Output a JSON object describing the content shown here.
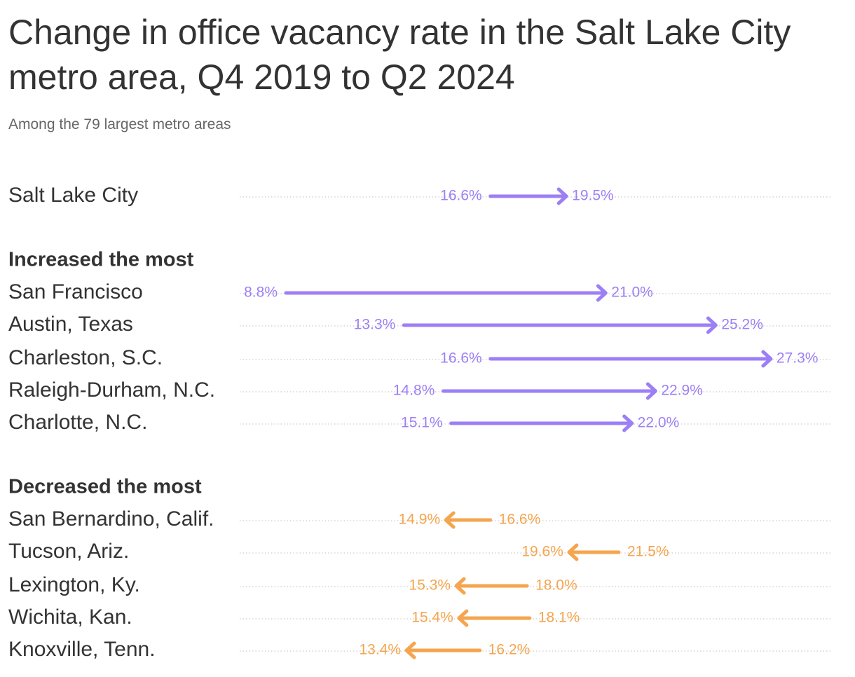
{
  "title": "Change in office vacancy rate in the Salt Lake City metro area, Q4 2019 to Q2 2024",
  "subtitle": "Among the 79 largest metro areas",
  "colors": {
    "increase": "#9d7ff5",
    "decrease": "#f5a54e",
    "text": "#333333",
    "subtext": "#666666",
    "grid": "#cccccc"
  },
  "chart_data": {
    "type": "arrow",
    "title": "Change in office vacancy rate in the Salt Lake City metro area, Q4 2019 to Q2 2024",
    "subtitle": "Among the 79 largest metro areas",
    "x_start_label": "Q4 2019",
    "x_end_label": "Q2 2024",
    "unit": "%",
    "xlim": [
      8.8,
      27.3
    ],
    "grid": false,
    "groups": [
      {
        "label": "",
        "rows": [
          {
            "name": "Salt Lake City",
            "start": 16.6,
            "end": 19.5,
            "start_label": "16.6%",
            "end_label": "19.5%"
          }
        ]
      },
      {
        "label": "Increased the most",
        "rows": [
          {
            "name": "San Francisco",
            "start": 8.8,
            "end": 21.0,
            "start_label": "8.8%",
            "end_label": "21.0%"
          },
          {
            "name": "Austin, Texas",
            "start": 13.3,
            "end": 25.2,
            "start_label": "13.3%",
            "end_label": "25.2%"
          },
          {
            "name": "Charleston, S.C.",
            "start": 16.6,
            "end": 27.3,
            "start_label": "16.6%",
            "end_label": "27.3%"
          },
          {
            "name": "Raleigh-Durham, N.C.",
            "start": 14.8,
            "end": 22.9,
            "start_label": "14.8%",
            "end_label": "22.9%"
          },
          {
            "name": "Charlotte, N.C.",
            "start": 15.1,
            "end": 22.0,
            "start_label": "15.1%",
            "end_label": "22.0%"
          }
        ]
      },
      {
        "label": "Decreased the most",
        "rows": [
          {
            "name": "San Bernardino, Calif.",
            "start": 16.6,
            "end": 14.9,
            "start_label": "16.6%",
            "end_label": "14.9%"
          },
          {
            "name": "Tucson, Ariz.",
            "start": 21.5,
            "end": 19.6,
            "start_label": "21.5%",
            "end_label": "19.6%"
          },
          {
            "name": "Lexington, Ky.",
            "start": 18.0,
            "end": 15.3,
            "start_label": "18.0%",
            "end_label": "15.3%"
          },
          {
            "name": "Wichita, Kan.",
            "start": 18.1,
            "end": 15.4,
            "start_label": "18.1%",
            "end_label": "15.4%"
          },
          {
            "name": "Knoxville, Tenn.",
            "start": 16.2,
            "end": 13.4,
            "start_label": "16.2%",
            "end_label": "13.4%"
          }
        ]
      }
    ]
  }
}
